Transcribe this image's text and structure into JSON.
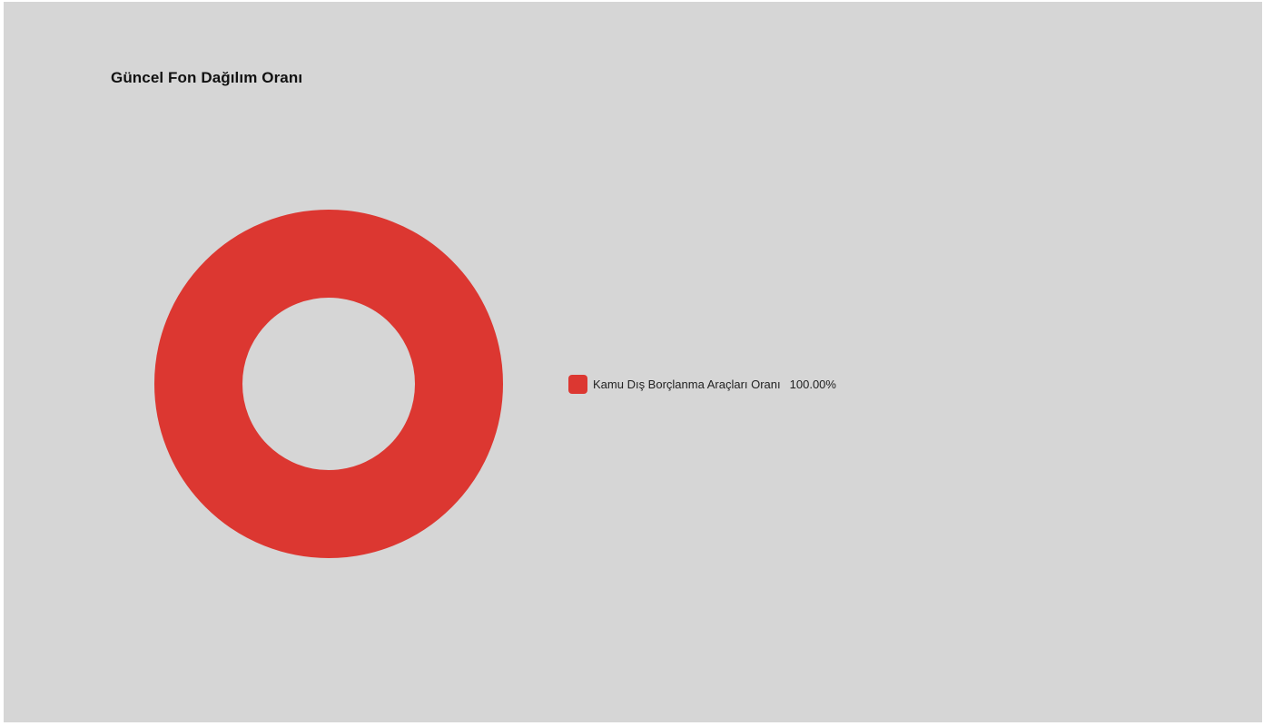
{
  "chart_data": {
    "type": "pie",
    "title": "Güncel Fon Dağılım Oranı",
    "donut": true,
    "categories": [
      "Kamu Dış Borçlanma Araçları Oranı"
    ],
    "values": [
      100.0
    ],
    "value_labels": [
      "100.00%"
    ],
    "colors": [
      "#dc3731"
    ],
    "legend_position": "right"
  }
}
